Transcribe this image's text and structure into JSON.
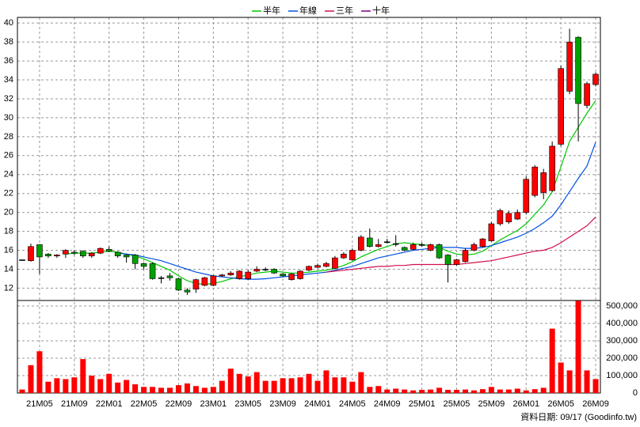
{
  "chart_data": {
    "type": "candlestick",
    "footer": "資料日期: 09/17  (Goodinfo.tw)",
    "categories": [
      null,
      null,
      "21M05",
      null,
      null,
      null,
      "21M09",
      null,
      null,
      null,
      "22M01",
      null,
      null,
      null,
      "22M05",
      null,
      null,
      null,
      "22M09",
      null,
      null,
      null,
      "23M01",
      null,
      null,
      null,
      "23M05",
      null,
      null,
      null,
      "23M09",
      null,
      null,
      null,
      "24M01",
      null,
      null,
      null,
      "24M05",
      null,
      null,
      null,
      "24M09",
      null,
      null,
      null,
      "25M01",
      null,
      null,
      null,
      "25M05",
      null,
      null,
      null,
      "25M09",
      null,
      null,
      null,
      "26M01",
      null,
      null,
      null,
      "26M05",
      null,
      null,
      null,
      "26M09"
    ],
    "up_color": "#ff0000",
    "down_color": "#00a000",
    "ohlc": {
      "open": [
        15.0,
        14.9,
        16.6,
        15.6,
        15.4,
        15.6,
        15.8,
        15.9,
        15.4,
        15.7,
        16.1,
        15.8,
        15.5,
        15.5,
        14.6,
        14.6,
        13.1,
        13.3,
        13.0,
        11.8,
        11.9,
        12.3,
        12.3,
        13.3,
        13.4,
        13.0,
        13.0,
        13.8,
        14.0,
        14.0,
        13.5,
        12.9,
        13.0,
        13.9,
        14.2,
        14.3,
        14.1,
        15.2,
        15.0,
        16.0,
        17.3,
        16.4,
        16.9,
        16.7,
        16.3,
        16.1,
        16.6,
        16.0,
        16.6,
        15.5,
        14.5,
        14.8,
        16.0,
        16.4,
        17.0,
        18.8,
        19.0,
        19.3,
        20.0,
        21.8,
        22.1,
        22.3,
        27.2,
        32.8,
        38.5,
        31.3,
        33.5
      ],
      "high": [
        15.0,
        16.7,
        16.6,
        15.7,
        15.6,
        16.1,
        16.0,
        16.0,
        15.8,
        16.3,
        16.4,
        15.9,
        15.6,
        15.6,
        14.7,
        14.7,
        13.3,
        13.6,
        13.1,
        12.0,
        13.0,
        13.2,
        13.4,
        13.5,
        13.8,
        13.9,
        13.9,
        14.3,
        14.2,
        14.1,
        13.6,
        13.6,
        13.9,
        14.4,
        14.6,
        14.8,
        15.4,
        15.8,
        16.2,
        17.6,
        18.3,
        17.2,
        17.2,
        17.6,
        16.4,
        16.8,
        16.8,
        16.7,
        16.7,
        15.6,
        15.1,
        16.2,
        16.8,
        17.3,
        19.0,
        20.4,
        20.2,
        20.3,
        23.8,
        25.0,
        24.6,
        27.5,
        35.5,
        39.4,
        38.6,
        33.8,
        34.8
      ],
      "low": [
        15.0,
        14.8,
        13.5,
        15.2,
        15.2,
        15.2,
        15.5,
        15.2,
        15.2,
        15.6,
        15.8,
        15.2,
        14.7,
        14.0,
        14.0,
        12.9,
        12.5,
        12.8,
        11.7,
        11.3,
        11.5,
        12.2,
        12.2,
        13.2,
        13.3,
        12.9,
        12.9,
        13.7,
        13.8,
        13.5,
        13.2,
        12.8,
        12.9,
        13.8,
        14.1,
        14.2,
        14.0,
        15.1,
        14.9,
        15.9,
        16.3,
        16.3,
        16.7,
        16.4,
        15.9,
        16.0,
        16.4,
        15.9,
        15.1,
        12.6,
        14.4,
        14.7,
        15.9,
        16.3,
        16.9,
        18.6,
        18.8,
        19.2,
        19.8,
        21.6,
        21.4,
        22.2,
        27.0,
        32.5,
        27.5,
        31.0,
        33.3
      ],
      "close": [
        15.0,
        16.4,
        15.3,
        15.4,
        15.5,
        16.0,
        15.7,
        15.4,
        15.7,
        16.2,
        15.9,
        15.4,
        15.3,
        14.6,
        14.3,
        13.0,
        13.1,
        13.1,
        11.8,
        11.6,
        12.9,
        13.1,
        13.3,
        13.4,
        13.6,
        13.8,
        13.7,
        14.0,
        14.0,
        13.6,
        13.3,
        13.5,
        13.8,
        14.3,
        14.4,
        14.6,
        15.2,
        15.6,
        16.0,
        17.4,
        16.4,
        16.6,
        16.9,
        16.7,
        16.0,
        16.6,
        16.6,
        16.6,
        15.2,
        14.5,
        15.0,
        16.0,
        16.6,
        17.2,
        18.8,
        20.2,
        19.9,
        20.0,
        23.5,
        24.8,
        24.2,
        27.0,
        35.2,
        38.0,
        31.5,
        33.6,
        34.6
      ]
    },
    "series": [
      {
        "name": "半年",
        "color": "#00c800",
        "values": [
          null,
          null,
          null,
          null,
          null,
          15.6,
          15.7,
          15.7,
          15.7,
          15.8,
          15.9,
          15.8,
          15.6,
          15.4,
          15.1,
          14.7,
          14.3,
          13.9,
          13.3,
          12.8,
          12.5,
          12.4,
          12.5,
          12.7,
          13.0,
          13.2,
          13.4,
          13.6,
          13.7,
          13.8,
          13.7,
          13.6,
          13.6,
          13.7,
          13.8,
          13.9,
          14.1,
          14.4,
          14.8,
          15.3,
          15.7,
          16.1,
          16.4,
          16.7,
          16.8,
          16.7,
          16.6,
          16.5,
          16.3,
          15.9,
          15.6,
          15.5,
          15.6,
          15.9,
          16.5,
          17.1,
          17.6,
          18.1,
          18.8,
          19.8,
          20.8,
          22.2,
          24.8,
          27.5,
          29.0,
          30.5,
          31.8
        ]
      },
      {
        "name": "年線",
        "color": "#0050e0",
        "values": [
          null,
          null,
          null,
          null,
          null,
          null,
          null,
          null,
          null,
          null,
          null,
          15.7,
          15.6,
          15.5,
          15.3,
          15.1,
          14.9,
          14.6,
          14.3,
          14.0,
          13.7,
          13.5,
          13.3,
          13.2,
          13.1,
          13.0,
          12.95,
          12.95,
          13.0,
          13.1,
          13.2,
          13.3,
          13.4,
          13.5,
          13.6,
          13.7,
          13.9,
          14.1,
          14.3,
          14.6,
          14.9,
          15.2,
          15.4,
          15.6,
          15.8,
          16.0,
          16.1,
          16.2,
          16.3,
          16.3,
          16.3,
          16.2,
          16.2,
          16.3,
          16.5,
          16.8,
          17.1,
          17.4,
          17.8,
          18.3,
          18.9,
          19.6,
          20.8,
          22.2,
          23.6,
          24.9,
          27.4
        ]
      },
      {
        "name": "三年",
        "color": "#d0104a",
        "values": [
          null,
          null,
          null,
          null,
          null,
          null,
          null,
          null,
          null,
          null,
          null,
          null,
          null,
          null,
          null,
          null,
          null,
          null,
          null,
          null,
          null,
          null,
          null,
          null,
          null,
          null,
          null,
          null,
          null,
          null,
          null,
          null,
          null,
          null,
          null,
          13.7,
          13.8,
          13.9,
          14.0,
          14.1,
          14.2,
          14.3,
          14.3,
          14.4,
          14.4,
          14.5,
          14.5,
          14.5,
          14.5,
          14.5,
          14.5,
          14.6,
          14.7,
          14.8,
          14.9,
          15.1,
          15.3,
          15.5,
          15.7,
          15.9,
          16.0,
          16.3,
          16.8,
          17.4,
          18.0,
          18.6,
          19.5
        ]
      },
      {
        "name": "十年",
        "color": "#800080",
        "values": [
          null,
          null,
          null,
          null,
          null,
          null,
          null,
          null,
          null,
          null,
          null,
          null,
          null,
          null,
          null,
          null,
          null,
          null,
          null,
          null,
          null,
          null,
          null,
          null,
          null,
          null,
          null,
          null,
          null,
          null,
          null,
          null,
          null,
          null,
          null,
          null,
          null,
          null,
          null,
          null,
          null,
          null,
          null,
          null,
          null,
          null,
          null,
          null,
          null,
          null,
          null,
          null,
          null,
          null,
          null,
          null,
          null,
          null,
          null,
          null,
          null,
          null,
          null,
          null,
          null,
          null,
          null
        ]
      }
    ],
    "ylim": [
      10.7,
      40.6
    ],
    "yticks": [
      12,
      14,
      16,
      18,
      20,
      22,
      24,
      26,
      28,
      30,
      32,
      34,
      36,
      38,
      40
    ],
    "volume": {
      "color": "#ff0000",
      "values": [
        20000,
        160000,
        240000,
        65000,
        85000,
        80000,
        90000,
        195000,
        100000,
        80000,
        110000,
        60000,
        75000,
        50000,
        35000,
        35000,
        30000,
        30000,
        45000,
        55000,
        40000,
        30000,
        35000,
        70000,
        140000,
        110000,
        95000,
        120000,
        70000,
        70000,
        85000,
        85000,
        90000,
        110000,
        70000,
        130000,
        90000,
        90000,
        65000,
        120000,
        35000,
        40000,
        20000,
        25000,
        20000,
        15000,
        18000,
        20000,
        30000,
        18000,
        18000,
        20000,
        15000,
        22000,
        35000,
        20000,
        20000,
        25000,
        15000,
        22000,
        30000,
        370000,
        175000,
        130000,
        530000,
        130000,
        80000
      ],
      "ylim": [
        0,
        532000
      ],
      "yticks": [
        0,
        {
          "value": 100000,
          "label": "100,000"
        },
        {
          "value": 200000,
          "label": "200,000"
        },
        {
          "value": 300000,
          "label": "300,000"
        },
        {
          "value": 400000,
          "label": "400,000"
        },
        {
          "value": 500000,
          "label": "500,000"
        }
      ]
    },
    "grid": true
  }
}
